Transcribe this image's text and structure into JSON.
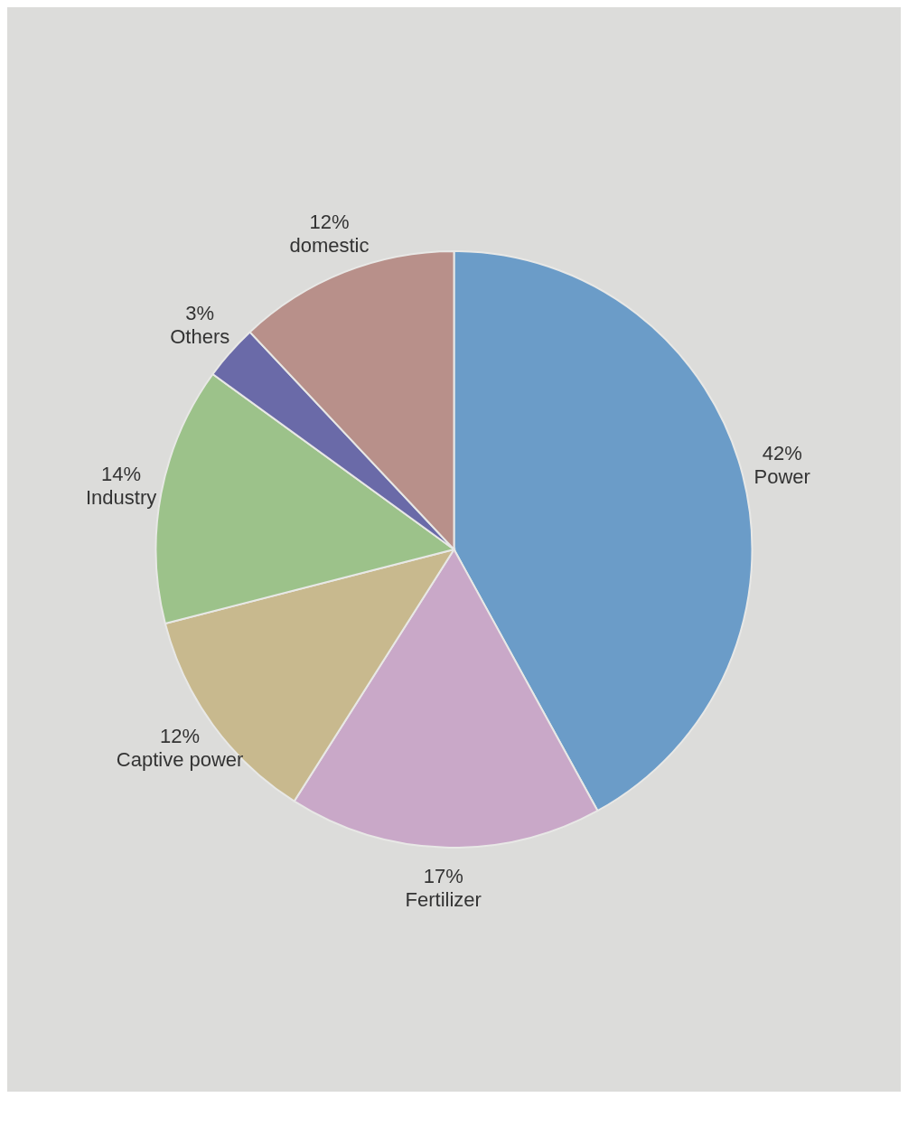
{
  "chart_data": {
    "type": "pie",
    "categories": [
      "Power",
      "Fertilizer",
      "Captive power",
      "Industry",
      "Others",
      "domestic"
    ],
    "values": [
      42,
      17,
      12,
      14,
      3,
      12
    ],
    "value_labels": [
      "42%",
      "17%",
      "12%",
      "14%",
      "3%",
      "12%"
    ],
    "colors": [
      "#6b9cc8",
      "#c9a8c8",
      "#c8b98e",
      "#9cc28a",
      "#6a6aa8",
      "#b8908a"
    ],
    "legend": false
  }
}
